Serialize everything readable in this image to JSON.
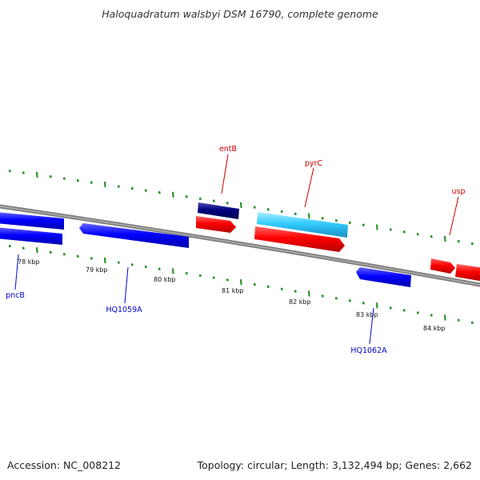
{
  "title": "Haloquadratum walsbyi DSM 16790, complete genome",
  "accession": "Accession: NC_008212",
  "summary": "Topology: circular; Length: 3,132,494 bp; Genes: 2,662",
  "colors": {
    "backbone": "#8c8c8c",
    "tick": "#1a8c1a",
    "forward_gene": "#ff0000",
    "reverse_gene": "#0000ff",
    "dark_gene": "#000080",
    "light_gene": "#33ccff",
    "forward_label": "#cc0000",
    "reverse_label": "#0000cc"
  },
  "kbp_labels": [
    "78 kbp",
    "79 kbp",
    "80 kbp",
    "81 kbp",
    "82 kbp",
    "83 kbp",
    "84 kbp"
  ],
  "gene_labels": [
    {
      "text": "entB",
      "strand": "forward"
    },
    {
      "text": "pyrC",
      "strand": "forward"
    },
    {
      "text": "usp",
      "strand": "forward"
    },
    {
      "text": "pncB",
      "strand": "reverse"
    },
    {
      "text": "HQ1059A",
      "strand": "reverse"
    },
    {
      "text": "HQ1062A",
      "strand": "reverse"
    }
  ]
}
